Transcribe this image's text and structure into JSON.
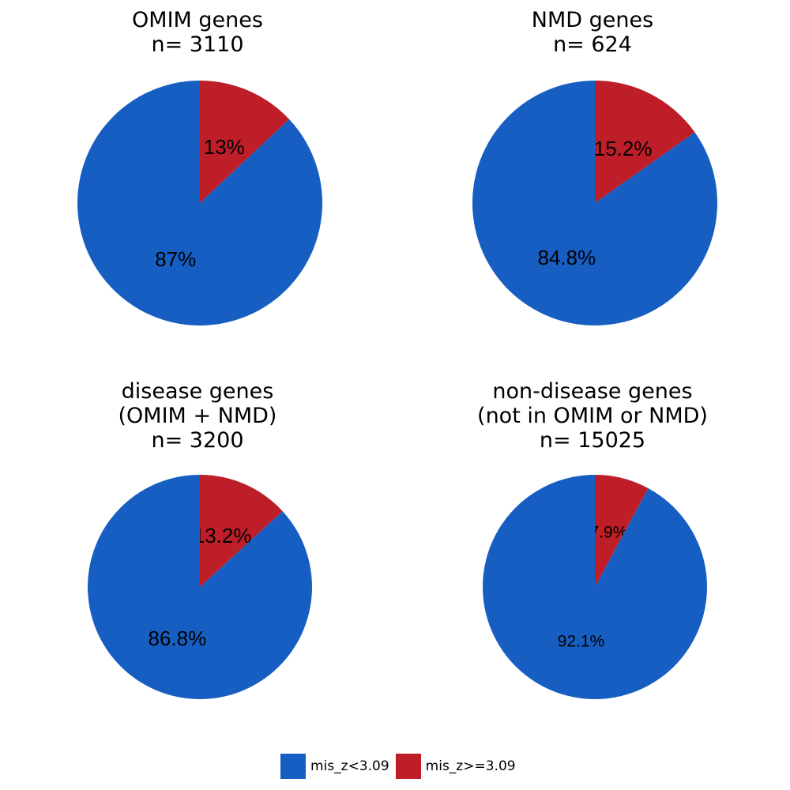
{
  "colors": {
    "low": "#175EC2",
    "high": "#BD1E28"
  },
  "legend": [
    {
      "label": "mis_z<3.09",
      "color": "#175EC2"
    },
    {
      "label": "mis_z>=3.09",
      "color": "#BD1E28"
    }
  ],
  "chart_data": [
    {
      "type": "pie",
      "title_lines": [
        "OMIM genes",
        "n= 3110"
      ],
      "slices": [
        {
          "category": "mis_z>=3.09",
          "value": 13,
          "label": "13%",
          "color": "#BD1E28"
        },
        {
          "category": "mis_z<3.09",
          "value": 87,
          "label": "87%",
          "color": "#175EC2"
        }
      ]
    },
    {
      "type": "pie",
      "title_lines": [
        "NMD genes",
        "n= 624"
      ],
      "slices": [
        {
          "category": "mis_z>=3.09",
          "value": 15.2,
          "label": "15.2%",
          "color": "#BD1E28"
        },
        {
          "category": "mis_z<3.09",
          "value": 84.8,
          "label": "84.8%",
          "color": "#175EC2"
        }
      ]
    },
    {
      "type": "pie",
      "title_lines": [
        "disease genes",
        "(OMIM + NMD)",
        "n= 3200"
      ],
      "slices": [
        {
          "category": "mis_z>=3.09",
          "value": 13.2,
          "label": "13.2%",
          "color": "#BD1E28"
        },
        {
          "category": "mis_z<3.09",
          "value": 86.8,
          "label": "86.8%",
          "color": "#175EC2"
        }
      ]
    },
    {
      "type": "pie",
      "title_lines": [
        "non-disease genes",
        "(not in OMIM or NMD)",
        "n= 15025"
      ],
      "slices": [
        {
          "category": "mis_z>=3.09",
          "value": 7.9,
          "label": "7.9%",
          "color": "#BD1E28"
        },
        {
          "category": "mis_z<3.09",
          "value": 92.1,
          "label": "92.1%",
          "color": "#175EC2"
        }
      ]
    }
  ]
}
